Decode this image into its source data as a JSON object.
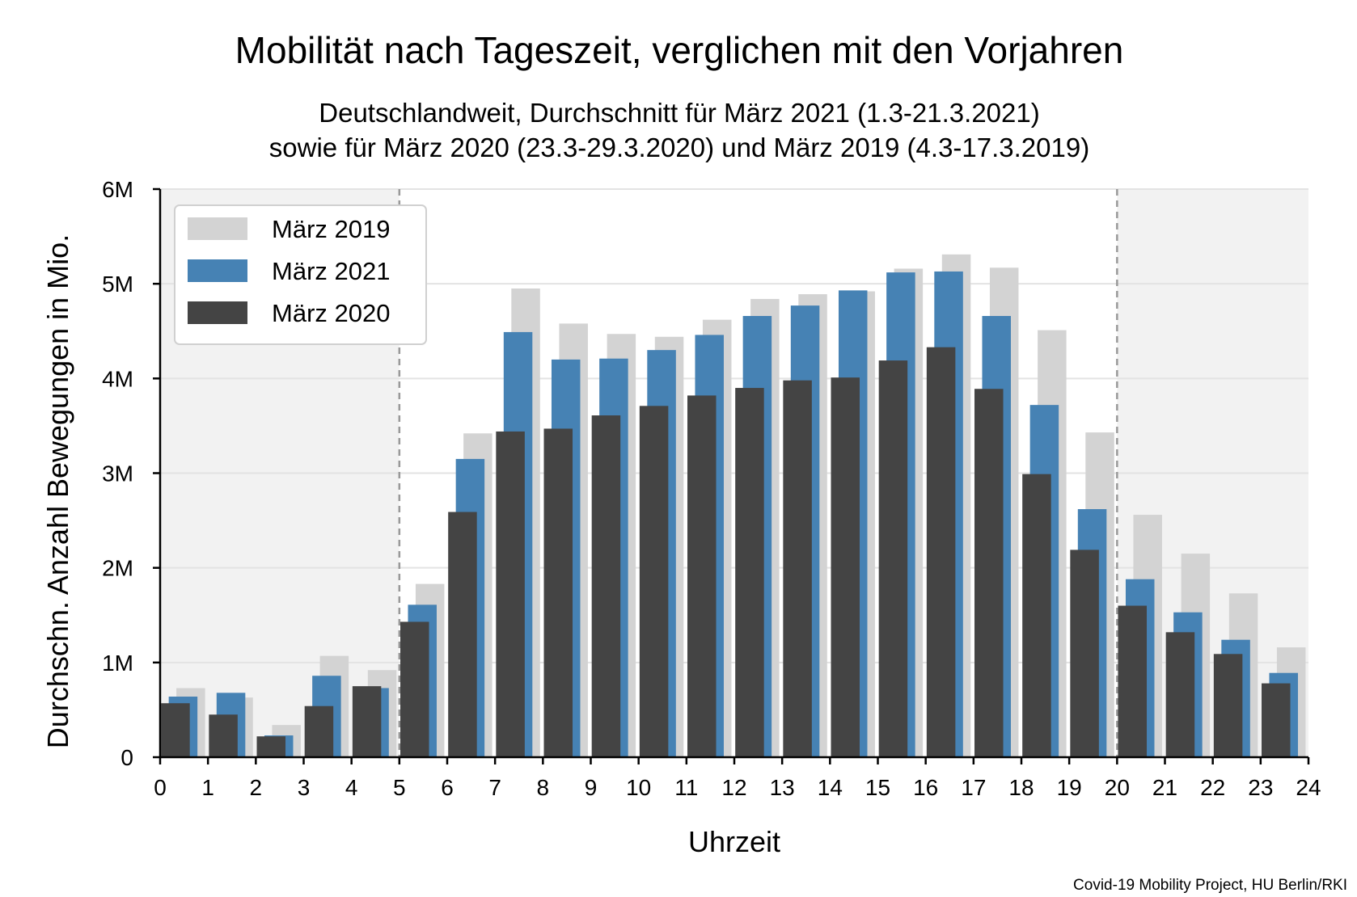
{
  "chart_data": {
    "type": "bar",
    "title": "Mobilität nach Tageszeit, verglichen mit den Vorjahren",
    "subtitle": [
      "Deutschlandweit, Durchschnitt für März 2021 (1.3-21.3.2021)",
      "sowie für März 2020 (23.3-29.3.2020) und März 2019 (4.3-17.3.2019)"
    ],
    "xlabel": "Uhrzeit",
    "ylabel": "Durchschn. Anzahl Bewegungen in Mio.",
    "source": "Covid-19 Mobility Project, HU Berlin/RKI",
    "xlim": [
      0,
      24
    ],
    "ylim": [
      0,
      6
    ],
    "x_ticks": [
      "0",
      "1",
      "2",
      "3",
      "4",
      "5",
      "6",
      "7",
      "8",
      "9",
      "10",
      "11",
      "12",
      "13",
      "14",
      "15",
      "16",
      "17",
      "18",
      "19",
      "20",
      "21",
      "22",
      "23",
      "24"
    ],
    "y_ticks": [
      {
        "value": 0,
        "label": "0"
      },
      {
        "value": 1,
        "label": "1M"
      },
      {
        "value": 2,
        "label": "2M"
      },
      {
        "value": 3,
        "label": "3M"
      },
      {
        "value": 4,
        "label": "4M"
      },
      {
        "value": 5,
        "label": "5M"
      },
      {
        "value": 6,
        "label": "6M"
      }
    ],
    "grid": "horizontal",
    "shaded_ranges": [
      [
        0,
        5
      ],
      [
        20,
        24
      ]
    ],
    "vlines": [
      5,
      20
    ],
    "legend_position": "top-left",
    "categories": [
      0,
      1,
      2,
      3,
      4,
      5,
      6,
      7,
      8,
      9,
      10,
      11,
      12,
      13,
      14,
      15,
      16,
      17,
      18,
      19,
      20,
      21,
      22,
      23
    ],
    "series": [
      {
        "name": "März 2019",
        "color": "#d3d3d3",
        "values": [
          0.73,
          0.63,
          0.34,
          1.07,
          0.92,
          1.83,
          3.42,
          4.95,
          4.58,
          4.47,
          4.44,
          4.62,
          4.84,
          4.89,
          4.92,
          5.16,
          5.31,
          5.17,
          4.51,
          3.43,
          2.56,
          2.15,
          1.73,
          1.16
        ]
      },
      {
        "name": "März 2021",
        "color": "#4682b4",
        "values": [
          0.64,
          0.68,
          0.23,
          0.86,
          0.73,
          1.61,
          3.15,
          4.49,
          4.2,
          4.21,
          4.3,
          4.46,
          4.66,
          4.77,
          4.93,
          5.12,
          5.13,
          4.66,
          3.72,
          2.62,
          1.88,
          1.53,
          1.24,
          0.89
        ]
      },
      {
        "name": "März 2020",
        "color": "#444444",
        "values": [
          0.57,
          0.45,
          0.22,
          0.54,
          0.75,
          1.43,
          2.59,
          3.44,
          3.47,
          3.61,
          3.71,
          3.82,
          3.9,
          3.98,
          4.01,
          4.19,
          4.33,
          3.89,
          2.99,
          2.19,
          1.6,
          1.32,
          1.09,
          0.78
        ]
      }
    ]
  }
}
